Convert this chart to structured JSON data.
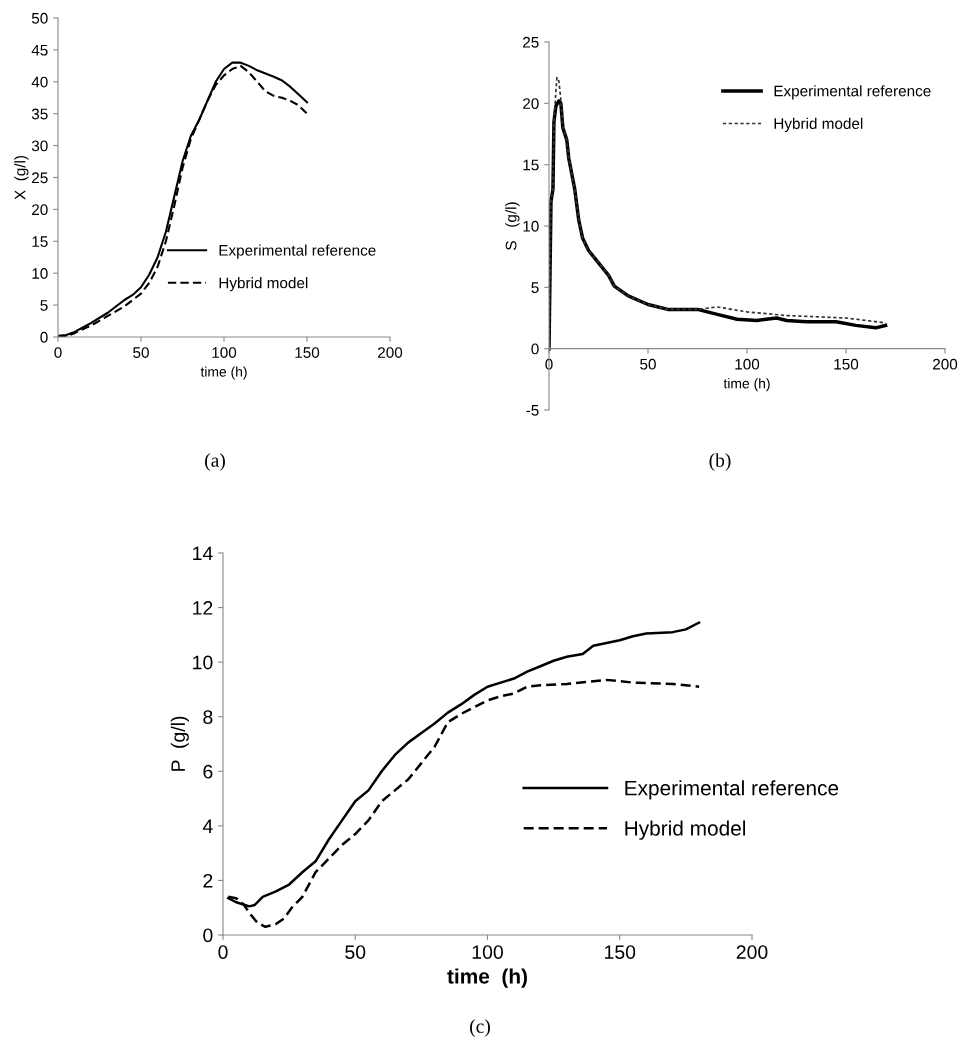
{
  "chart_data": [
    {
      "type": "line",
      "xlabel": "time (h)",
      "ylabel": "X  (g/l)",
      "annotations": [
        "(a)"
      ],
      "xlim": [
        0,
        200
      ],
      "xticks": [
        0,
        50,
        100,
        150,
        200
      ],
      "ylim": [
        0,
        50
      ],
      "yticks": [
        0,
        5,
        10,
        15,
        20,
        25,
        30,
        35,
        40,
        45,
        50
      ],
      "legend": "right",
      "grid": false,
      "series": [
        {
          "name": "Experimental reference",
          "color": "#000000",
          "line_style": "solid",
          "x": [
            0,
            5,
            10,
            20,
            30,
            40,
            45,
            50,
            55,
            60,
            65,
            70,
            75,
            80,
            85,
            90,
            95,
            100,
            105,
            110,
            115,
            120,
            130,
            135,
            140,
            145,
            150
          ],
          "values": [
            0.2,
            0.3,
            0.8,
            2.2,
            3.8,
            5.8,
            6.6,
            7.8,
            9.8,
            12.5,
            16.5,
            22,
            27.5,
            31.5,
            34,
            37,
            40,
            42,
            43,
            43,
            42.5,
            41.8,
            40.8,
            40.2,
            39.2,
            38,
            36.8
          ]
        },
        {
          "name": "Hybrid model",
          "color": "#000000",
          "line_style": "dashed",
          "x": [
            0,
            5,
            10,
            20,
            30,
            40,
            45,
            50,
            55,
            60,
            65,
            70,
            75,
            80,
            85,
            90,
            95,
            100,
            105,
            110,
            115,
            120,
            125,
            130,
            135,
            140,
            145,
            150
          ],
          "values": [
            0,
            0.1,
            0.6,
            1.8,
            3.3,
            4.8,
            5.8,
            6.8,
            8.5,
            11,
            15,
            20.5,
            26.5,
            31,
            34,
            37,
            39.5,
            41,
            42,
            42.5,
            41.5,
            40,
            38.5,
            37.8,
            37.5,
            37,
            36.3,
            35
          ]
        }
      ]
    },
    {
      "type": "line",
      "xlabel": "time (h)",
      "ylabel": "S   (g/l)",
      "annotations": [
        "(b)"
      ],
      "xlim": [
        0,
        200
      ],
      "xticks": [
        0,
        50,
        100,
        150,
        200
      ],
      "ylim": [
        -5,
        25
      ],
      "yticks": [
        -5,
        0,
        5,
        10,
        15,
        20,
        25
      ],
      "legend": "top right",
      "grid": false,
      "series": [
        {
          "name": "Experimental reference",
          "color": "#000000",
          "line_style": "solid",
          "x": [
            0,
            0.5,
            1,
            2,
            2.5,
            3.5,
            5,
            6,
            7,
            9,
            10,
            13,
            15,
            17,
            20,
            25,
            30,
            33,
            40,
            50,
            60,
            75,
            85,
            95,
            105,
            115,
            120,
            130,
            145,
            155,
            165,
            170
          ],
          "values": [
            0,
            6,
            12,
            13,
            18.5,
            19.8,
            20.2,
            20,
            18,
            17,
            15.5,
            13,
            10.5,
            9,
            8,
            7,
            6,
            5.1,
            4.3,
            3.6,
            3.2,
            3.2,
            2.8,
            2.4,
            2.3,
            2.5,
            2.3,
            2.2,
            2.2,
            1.9,
            1.7,
            1.9
          ]
        },
        {
          "name": "Hybrid model",
          "color": "#333333",
          "line_style": "dotted",
          "x": [
            0,
            0.5,
            1,
            2,
            2.5,
            3.5,
            4,
            5,
            6,
            7,
            9,
            10,
            13,
            15,
            17,
            20,
            25,
            30,
            33,
            40,
            50,
            60,
            75,
            85,
            100,
            120,
            150,
            170
          ],
          "values": [
            0,
            6,
            12,
            13,
            18.5,
            21,
            22.1,
            21.8,
            20.3,
            18,
            17,
            15.5,
            13,
            10.5,
            9,
            8,
            7,
            6,
            5.1,
            4.3,
            3.6,
            3.2,
            3.2,
            3.4,
            3,
            2.7,
            2.5,
            2.1
          ]
        }
      ]
    },
    {
      "type": "line",
      "xlabel": "time  (h)",
      "ylabel": "P  (g/l)",
      "annotations": [
        "(c)"
      ],
      "xlim": [
        0,
        200
      ],
      "xticks": [
        0,
        50,
        100,
        150,
        200
      ],
      "ylim": [
        0,
        14
      ],
      "yticks": [
        0,
        2,
        4,
        6,
        8,
        10,
        12,
        14
      ],
      "legend": "bottom right",
      "grid": false,
      "series": [
        {
          "name": "Experimental reference",
          "color": "#000000",
          "line_style": "solid",
          "x": [
            2,
            5,
            10,
            12,
            15,
            20,
            25,
            30,
            35,
            40,
            45,
            50,
            55,
            60,
            65,
            70,
            75,
            80,
            85,
            90,
            95,
            100,
            105,
            110,
            115,
            120,
            125,
            130,
            136,
            140,
            145,
            150,
            155,
            160,
            170,
            175,
            180
          ],
          "values": [
            1.35,
            1.2,
            1.05,
            1.1,
            1.4,
            1.6,
            1.85,
            2.3,
            2.7,
            3.5,
            4.2,
            4.9,
            5.3,
            6,
            6.6,
            7.05,
            7.4,
            7.75,
            8.15,
            8.45,
            8.8,
            9.1,
            9.25,
            9.4,
            9.65,
            9.85,
            10.05,
            10.2,
            10.3,
            10.6,
            10.7,
            10.8,
            10.95,
            11.05,
            11.1,
            11.2,
            11.45
          ]
        },
        {
          "name": "Hybrid model",
          "color": "#000000",
          "line_style": "dashed",
          "x": [
            2,
            5,
            8,
            10,
            13,
            16,
            20,
            23,
            26,
            30,
            35,
            40,
            45,
            50,
            55,
            60,
            65,
            70,
            75,
            80,
            85,
            90,
            95,
            100,
            105,
            110,
            115,
            120,
            130,
            145,
            155,
            170,
            180
          ],
          "values": [
            1.4,
            1.35,
            1.1,
            0.8,
            0.45,
            0.3,
            0.4,
            0.6,
            1.0,
            1.4,
            2.3,
            2.8,
            3.3,
            3.7,
            4.2,
            4.9,
            5.3,
            5.7,
            6.3,
            6.9,
            7.8,
            8.1,
            8.35,
            8.6,
            8.75,
            8.85,
            9.1,
            9.15,
            9.2,
            9.35,
            9.25,
            9.2,
            9.1
          ]
        }
      ]
    }
  ]
}
